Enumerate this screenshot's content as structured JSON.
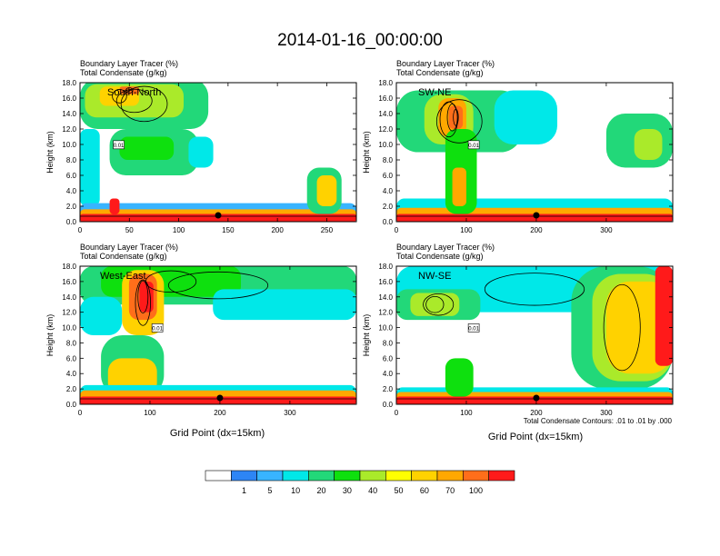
{
  "main_title": "2014-01-16_00:00:00",
  "x_axis_title": "Grid Point (dx=15km)",
  "contour_note": "Total Condensate Contours: .01 to .01 by .000",
  "colors": {
    "band_colors": [
      "#ffffff",
      "#2d85f5",
      "#38b4ff",
      "#00e8e8",
      "#22d879",
      "#0ee00e",
      "#aaea2a",
      "#ffff00",
      "#ffd200",
      "#ffa800",
      "#ff6e1a",
      "#ff1a1a"
    ],
    "frame": "#000000",
    "contour": "#000000"
  },
  "colorbar": {
    "labels": [
      "1",
      "5",
      "10",
      "20",
      "30",
      "40",
      "50",
      "60",
      "70",
      "100"
    ]
  },
  "chart_data": [
    {
      "type": "heatmap",
      "panel_label": "South-North",
      "header_line1": "Boundary Layer Tracer   (%)",
      "header_line2": "Total Condensate   (g/kg)",
      "ylabel": "Height (km)",
      "xlim": [
        0,
        280
      ],
      "ylim": [
        0,
        18
      ],
      "x_ticks": [
        0,
        50,
        100,
        150,
        200,
        250
      ],
      "x_tick_labels": [
        "0",
        "50",
        "100",
        "150",
        "200",
        "250"
      ],
      "y_tick_labels": [
        "0.0",
        "2.0",
        "4.0",
        "6.0",
        "8.0",
        "10.0",
        "12.0",
        "14.0",
        "16.0",
        "18.0"
      ],
      "marker_x": 140,
      "contour_label": "0.01",
      "blobs": [
        {
          "x": [
            0,
            130
          ],
          "y": [
            12,
            18.5
          ],
          "level": 4
        },
        {
          "x": [
            5,
            105
          ],
          "y": [
            13.5,
            17.8
          ],
          "level": 6
        },
        {
          "x": [
            20,
            60
          ],
          "y": [
            15,
            17.5
          ],
          "level": 8
        },
        {
          "x": [
            40,
            60
          ],
          "y": [
            16.5,
            17.5
          ],
          "level": 10
        },
        {
          "x": [
            30,
            120
          ],
          "y": [
            6,
            12
          ],
          "level": 4
        },
        {
          "x": [
            40,
            95
          ],
          "y": [
            8,
            11
          ],
          "level": 5
        },
        {
          "x": [
            110,
            135
          ],
          "y": [
            7,
            11
          ],
          "level": 3
        },
        {
          "x": [
            0,
            20
          ],
          "y": [
            2,
            12
          ],
          "level": 3
        },
        {
          "x": [
            0,
            280
          ],
          "y": [
            0,
            2.4
          ],
          "level": 2
        },
        {
          "x": [
            0,
            280
          ],
          "y": [
            0,
            1.6
          ],
          "level": 9
        },
        {
          "x": [
            0,
            280
          ],
          "y": [
            0,
            1.0
          ],
          "level": 11
        },
        {
          "x": [
            230,
            265
          ],
          "y": [
            1,
            7
          ],
          "level": 4
        },
        {
          "x": [
            240,
            260
          ],
          "y": [
            2,
            6
          ],
          "level": 8
        },
        {
          "x": [
            30,
            40
          ],
          "y": [
            1,
            3
          ],
          "level": 11
        }
      ]
    },
    {
      "type": "heatmap",
      "panel_label": "SW-NE",
      "header_line1": "Boundary Layer Tracer   (%)",
      "header_line2": "Total Condensate   (g/kg)",
      "ylabel": "Height (km)",
      "xlim": [
        0,
        395
      ],
      "ylim": [
        0,
        18
      ],
      "x_ticks": [
        0,
        100,
        200,
        300
      ],
      "x_tick_labels": [
        "0",
        "100",
        "200",
        "300"
      ],
      "y_tick_labels": [
        "0.0",
        "2.0",
        "4.0",
        "6.0",
        "8.0",
        "10.0",
        "12.0",
        "14.0",
        "16.0",
        "18.0"
      ],
      "marker_x": 200,
      "contour_label": "0.01",
      "blobs": [
        {
          "x": [
            0,
            180
          ],
          "y": [
            9,
            17
          ],
          "level": 4
        },
        {
          "x": [
            40,
            110
          ],
          "y": [
            10,
            16.5
          ],
          "level": 6
        },
        {
          "x": [
            60,
            100
          ],
          "y": [
            11,
            16
          ],
          "level": 9
        },
        {
          "x": [
            75,
            95
          ],
          "y": [
            12,
            15
          ],
          "level": 10
        },
        {
          "x": [
            140,
            230
          ],
          "y": [
            10,
            17
          ],
          "level": 3
        },
        {
          "x": [
            300,
            395
          ],
          "y": [
            7,
            14
          ],
          "level": 4
        },
        {
          "x": [
            340,
            380
          ],
          "y": [
            8,
            12
          ],
          "level": 6
        },
        {
          "x": [
            0,
            395
          ],
          "y": [
            0,
            3
          ],
          "level": 3
        },
        {
          "x": [
            0,
            395
          ],
          "y": [
            0,
            1.8
          ],
          "level": 9
        },
        {
          "x": [
            0,
            395
          ],
          "y": [
            0,
            1.0
          ],
          "level": 11
        },
        {
          "x": [
            70,
            115
          ],
          "y": [
            1,
            12
          ],
          "level": 5
        },
        {
          "x": [
            80,
            100
          ],
          "y": [
            2,
            7
          ],
          "level": 9
        }
      ]
    },
    {
      "type": "heatmap",
      "panel_label": "West-East",
      "header_line1": "Boundary Layer Tracer   (%)",
      "header_line2": "Total Condensate   (g/kg)",
      "ylabel": "Height (km)",
      "xlim": [
        0,
        395
      ],
      "ylim": [
        0,
        18
      ],
      "x_ticks": [
        0,
        100,
        200,
        300
      ],
      "x_tick_labels": [
        "0",
        "100",
        "200",
        "300"
      ],
      "y_tick_labels": [
        "0.0",
        "2.0",
        "4.0",
        "6.0",
        "8.0",
        "10.0",
        "12.0",
        "14.0",
        "16.0",
        "18.0"
      ],
      "marker_x": 200,
      "contour_label": "0.01",
      "blobs": [
        {
          "x": [
            0,
            395
          ],
          "y": [
            13,
            18
          ],
          "level": 4
        },
        {
          "x": [
            30,
            230
          ],
          "y": [
            14,
            18
          ],
          "level": 5
        },
        {
          "x": [
            60,
            120
          ],
          "y": [
            9,
            17.5
          ],
          "level": 8
        },
        {
          "x": [
            70,
            110
          ],
          "y": [
            11,
            17
          ],
          "level": 10
        },
        {
          "x": [
            85,
            105
          ],
          "y": [
            12,
            16
          ],
          "level": 11
        },
        {
          "x": [
            190,
            395
          ],
          "y": [
            11,
            15
          ],
          "level": 3
        },
        {
          "x": [
            0,
            60
          ],
          "y": [
            9,
            14
          ],
          "level": 3
        },
        {
          "x": [
            30,
            120
          ],
          "y": [
            1,
            9
          ],
          "level": 4
        },
        {
          "x": [
            40,
            110
          ],
          "y": [
            1,
            6
          ],
          "level": 8
        },
        {
          "x": [
            0,
            395
          ],
          "y": [
            0,
            2.5
          ],
          "level": 3
        },
        {
          "x": [
            0,
            395
          ],
          "y": [
            0,
            1.8
          ],
          "level": 9
        },
        {
          "x": [
            0,
            395
          ],
          "y": [
            0,
            1.0
          ],
          "level": 11
        }
      ]
    },
    {
      "type": "heatmap",
      "panel_label": "NW-SE",
      "header_line1": "Boundary Layer Tracer   (%)",
      "header_line2": "Total Condensate   (g/kg)",
      "ylabel": "Height (km)",
      "xlim": [
        0,
        395
      ],
      "ylim": [
        0,
        18
      ],
      "x_ticks": [
        0,
        100,
        200,
        300
      ],
      "x_tick_labels": [
        "0",
        "100",
        "200",
        "300"
      ],
      "y_tick_labels": [
        "0.0",
        "2.0",
        "4.0",
        "6.0",
        "8.0",
        "10.0",
        "12.0",
        "14.0",
        "16.0",
        "18.0"
      ],
      "marker_x": 200,
      "contour_label": "0.01",
      "blobs": [
        {
          "x": [
            0,
            395
          ],
          "y": [
            12,
            18
          ],
          "level": 3
        },
        {
          "x": [
            0,
            120
          ],
          "y": [
            11,
            15
          ],
          "level": 4
        },
        {
          "x": [
            20,
            90
          ],
          "y": [
            11.5,
            14.5
          ],
          "level": 6
        },
        {
          "x": [
            250,
            395
          ],
          "y": [
            2,
            18
          ],
          "level": 4
        },
        {
          "x": [
            280,
            395
          ],
          "y": [
            3,
            17
          ],
          "level": 6
        },
        {
          "x": [
            300,
            395
          ],
          "y": [
            4,
            16
          ],
          "level": 8
        },
        {
          "x": [
            370,
            395
          ],
          "y": [
            5,
            18
          ],
          "level": 11
        },
        {
          "x": [
            0,
            395
          ],
          "y": [
            0,
            2.2
          ],
          "level": 3
        },
        {
          "x": [
            0,
            395
          ],
          "y": [
            0,
            1.6
          ],
          "level": 9
        },
        {
          "x": [
            0,
            395
          ],
          "y": [
            0,
            1.0
          ],
          "level": 11
        },
        {
          "x": [
            70,
            110
          ],
          "y": [
            1,
            6
          ],
          "level": 5
        }
      ]
    }
  ]
}
